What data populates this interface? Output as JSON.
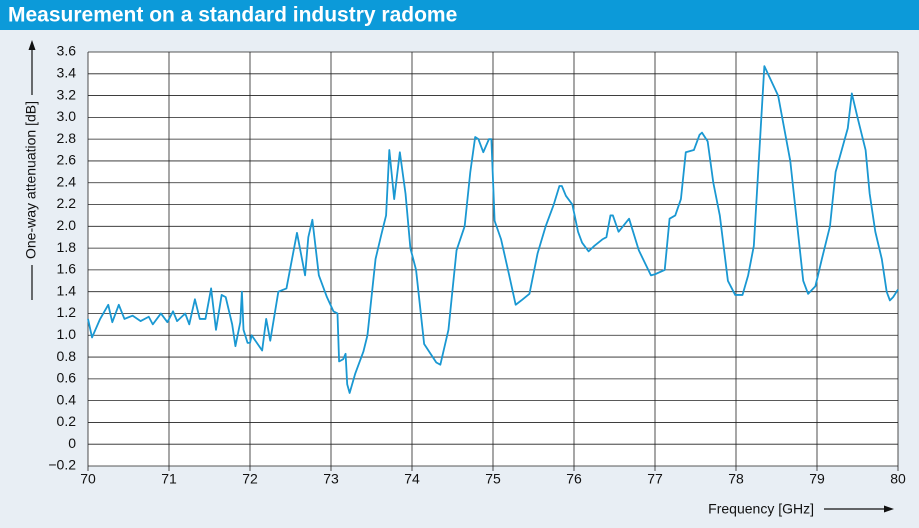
{
  "chart_data": {
    "type": "line",
    "title": "Measurement on a standard industry radome",
    "xlabel": "Frequency [GHz]",
    "ylabel": "One-way attenuation [dB]",
    "color": "#1a98d2",
    "grid": true,
    "xlim": [
      70,
      80
    ],
    "xticks": [
      70,
      71,
      72,
      73,
      74,
      75,
      76,
      77,
      78,
      79,
      80
    ],
    "ylim": [
      -0.2,
      3.6
    ],
    "yticks": [
      {
        "value": -0.2,
        "label": "−0.2"
      },
      0,
      0.2,
      0.4,
      0.6,
      0.8,
      {
        "value": 1,
        "label": "1.0"
      },
      1.2,
      1.4,
      1.6,
      1.8,
      {
        "value": 2,
        "label": "2.0"
      },
      2.2,
      2.4,
      2.6,
      2.8,
      {
        "value": 3,
        "label": "3.0"
      },
      3.2,
      3.4,
      3.6
    ],
    "x": [
      70.0,
      70.05,
      70.15,
      70.25,
      70.3,
      70.38,
      70.45,
      70.55,
      70.65,
      70.75,
      70.8,
      70.9,
      70.98,
      71.05,
      71.1,
      71.2,
      71.25,
      71.32,
      71.38,
      71.45,
      71.52,
      71.58,
      71.65,
      71.7,
      71.78,
      71.82,
      71.88,
      71.9,
      71.92,
      71.97,
      72.0,
      72.02,
      72.15,
      72.2,
      72.25,
      72.35,
      72.45,
      72.58,
      72.68,
      72.72,
      72.77,
      72.85,
      72.95,
      73.03,
      73.08,
      73.1,
      73.15,
      73.18,
      73.2,
      73.23,
      73.3,
      73.4,
      73.45,
      73.55,
      73.62,
      73.68,
      73.72,
      73.78,
      73.85,
      73.92,
      73.98,
      74.05,
      74.15,
      74.3,
      74.35,
      74.45,
      74.55,
      74.65,
      74.72,
      74.78,
      74.82,
      74.88,
      74.95,
      74.98,
      75.02,
      75.1,
      75.2,
      75.28,
      75.35,
      75.45,
      75.55,
      75.65,
      75.75,
      75.82,
      75.85,
      75.9,
      75.98,
      76.05,
      76.1,
      76.18,
      76.25,
      76.35,
      76.4,
      76.45,
      76.48,
      76.55,
      76.68,
      76.8,
      76.95,
      77.0,
      77.12,
      77.18,
      77.25,
      77.32,
      77.38,
      77.48,
      77.55,
      77.58,
      77.65,
      77.72,
      77.8,
      77.9,
      77.99,
      78.08,
      78.15,
      78.22,
      78.35,
      78.52,
      78.67,
      78.83,
      78.89,
      78.98,
      79.06,
      79.16,
      79.23,
      79.38,
      79.43,
      79.5,
      79.6,
      79.65,
      79.72,
      79.8,
      79.86,
      79.9,
      79.94,
      80.0
    ],
    "values": [
      1.15,
      0.98,
      1.15,
      1.28,
      1.12,
      1.28,
      1.15,
      1.18,
      1.13,
      1.17,
      1.1,
      1.2,
      1.12,
      1.22,
      1.13,
      1.2,
      1.1,
      1.33,
      1.15,
      1.15,
      1.43,
      1.05,
      1.37,
      1.35,
      1.1,
      0.9,
      1.12,
      1.4,
      1.05,
      0.93,
      0.93,
      1.0,
      0.86,
      1.15,
      0.95,
      1.4,
      1.43,
      1.94,
      1.55,
      1.9,
      2.06,
      1.55,
      1.35,
      1.22,
      1.2,
      0.76,
      0.78,
      0.83,
      0.55,
      0.47,
      0.65,
      0.85,
      1.0,
      1.7,
      1.92,
      2.1,
      2.7,
      2.25,
      2.68,
      2.3,
      1.8,
      1.6,
      0.92,
      0.75,
      0.73,
      1.05,
      1.78,
      2.0,
      2.5,
      2.82,
      2.8,
      2.68,
      2.8,
      2.8,
      2.05,
      1.88,
      1.55,
      1.28,
      1.32,
      1.38,
      1.75,
      2.0,
      2.2,
      2.37,
      2.37,
      2.28,
      2.2,
      1.95,
      1.85,
      1.77,
      1.82,
      1.88,
      1.9,
      2.1,
      2.1,
      1.95,
      2.07,
      1.78,
      1.55,
      1.56,
      1.6,
      2.07,
      2.1,
      2.25,
      2.68,
      2.7,
      2.84,
      2.86,
      2.78,
      2.4,
      2.1,
      1.5,
      1.37,
      1.37,
      1.55,
      1.82,
      3.47,
      3.2,
      2.6,
      1.5,
      1.38,
      1.45,
      1.7,
      2.0,
      2.5,
      2.9,
      3.22,
      3.0,
      2.7,
      2.3,
      1.95,
      1.7,
      1.4,
      1.32,
      1.35,
      1.42
    ]
  }
}
